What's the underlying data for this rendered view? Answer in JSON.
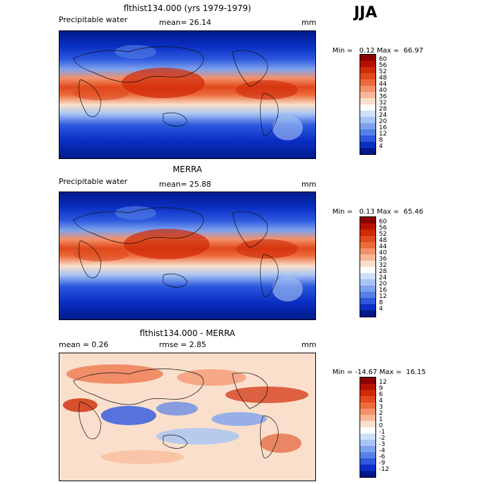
{
  "season": "JJA",
  "panels": [
    {
      "title": "flthist134.000 (yrs 1979-1979)",
      "left_label": "Precipitable water",
      "mid_label": "mean=",
      "mid_value": "26.14",
      "units": "mm",
      "min_label": "Min =",
      "min_value": "0.12",
      "max_label": "Max =",
      "max_value": "66.97",
      "colorbar": {
        "labels": [
          "60",
          "56",
          "52",
          "48",
          "44",
          "40",
          "36",
          "32",
          "28",
          "24",
          "20",
          "16",
          "12",
          "8",
          "4"
        ],
        "colors": [
          "#8b0000",
          "#b41200",
          "#d02a06",
          "#e04a1c",
          "#ec6a3c",
          "#f4906a",
          "#f8b898",
          "#fae0cc",
          "#ffffff",
          "#cfe0fa",
          "#a8c4f4",
          "#7ea2ec",
          "#5580e6",
          "#2c58de",
          "#0a2fc4",
          "#001a8c"
        ]
      }
    },
    {
      "title": "MERRA",
      "left_label": "Precipitable water",
      "mid_label": "mean=",
      "mid_value": "25.88",
      "units": "mm",
      "min_label": "Min =",
      "min_value": "0.13",
      "max_label": "Max =",
      "max_value": "65.46",
      "colorbar": {
        "labels": [
          "60",
          "56",
          "52",
          "48",
          "44",
          "40",
          "36",
          "32",
          "28",
          "24",
          "20",
          "16",
          "12",
          "8",
          "4"
        ],
        "colors": [
          "#8b0000",
          "#b41200",
          "#d02a06",
          "#e04a1c",
          "#ec6a3c",
          "#f4906a",
          "#f8b898",
          "#fae0cc",
          "#ffffff",
          "#cfe0fa",
          "#a8c4f4",
          "#7ea2ec",
          "#5580e6",
          "#2c58de",
          "#0a2fc4",
          "#001a8c"
        ]
      }
    },
    {
      "title": "flthist134.000 - MERRA",
      "left_label": "mean =",
      "left_value": "0.26",
      "mid_label": "rmse =",
      "mid_value": "2.85",
      "units": "mm",
      "min_label": "Min =",
      "min_value": "-14.67",
      "max_label": "Max =",
      "max_value": "16.15",
      "colorbar": {
        "labels": [
          "12",
          "9",
          "6",
          "4",
          "3",
          "2",
          "1",
          "0",
          "-1",
          "-2",
          "-3",
          "-4",
          "-6",
          "-9",
          "-12"
        ],
        "colors": [
          "#8b0000",
          "#b41200",
          "#d02a06",
          "#e04a1c",
          "#ec6a3c",
          "#f4906a",
          "#f8b898",
          "#fae0cc",
          "#ffffff",
          "#cfe0fa",
          "#a8c4f4",
          "#7ea2ec",
          "#5580e6",
          "#2c58de",
          "#0a2fc4",
          "#001a8c"
        ]
      }
    }
  ]
}
